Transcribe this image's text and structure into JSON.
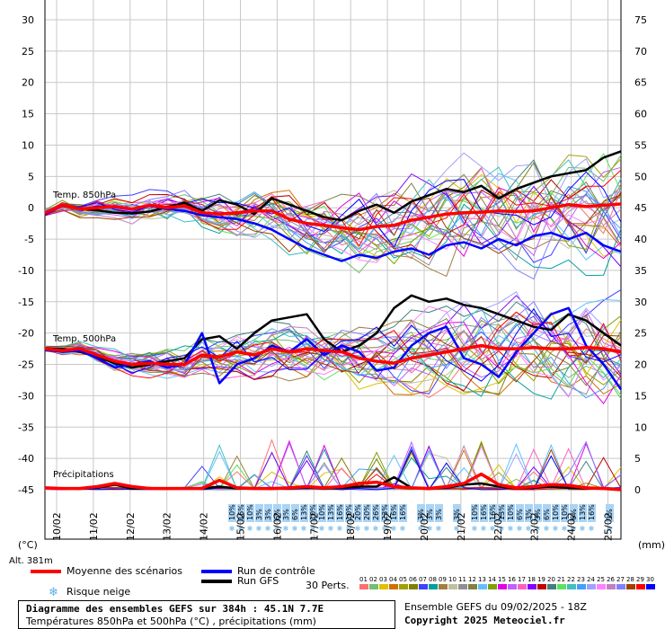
{
  "chart_data": {
    "type": "line",
    "title": "Diagramme des ensembles GEFS sur 384h : 45.1N 7.7E",
    "subtitle": "Températures 850hPa et 500hPa (°C) , précipitations (mm)",
    "x_tick_labels": [
      "10/02",
      "11/02",
      "12/02",
      "13/02",
      "14/02",
      "15/02",
      "16/02",
      "17/02",
      "18/02",
      "19/02",
      "20/02",
      "21/02",
      "22/02",
      "23/02",
      "24/02",
      "25/02"
    ],
    "left_axis": {
      "label": "(°C)",
      "ticks": [
        30,
        25,
        20,
        15,
        10,
        5,
        0,
        -5,
        -10,
        -15,
        -20,
        -25,
        -30,
        -35,
        -40,
        -45
      ],
      "ylim": [
        -45,
        30
      ]
    },
    "right_axis": {
      "label": "(mm)",
      "ticks": [
        75,
        70,
        65,
        60,
        55,
        50,
        45,
        40,
        35,
        30,
        25,
        20,
        15,
        10,
        5,
        0
      ],
      "ylim": [
        0,
        75
      ]
    },
    "panel_labels": {
      "t850": "Temp. 850hPa",
      "t500": "Temp. 500hPa",
      "precip": "Précipitations"
    },
    "altitude_label": "Alt. 381m",
    "series": [
      {
        "name": "Moyenne des scénarios",
        "group": "t850",
        "color": "#ff0000",
        "values": [
          -0.8,
          0.4,
          -0.2,
          0.0,
          0.2,
          -0.2,
          0.4,
          0.0,
          0.3,
          -0.8,
          -1.0,
          -0.8,
          -0.5,
          -0.5,
          -1.8,
          -2.5,
          -2.8,
          -3.2,
          -3.5,
          -3.0,
          -2.8,
          -2.0,
          -1.5,
          -1.0,
          -0.8,
          -0.7,
          -0.5,
          -0.6,
          -0.5,
          0.0,
          0.5,
          0.2,
          0.4,
          0.6
        ]
      },
      {
        "name": "Run de contrôle",
        "group": "t850",
        "color": "#0000ff",
        "values": [
          -0.8,
          0.4,
          -0.3,
          0.2,
          0.1,
          -0.3,
          0.3,
          -0.2,
          -0.5,
          -1.2,
          -1.5,
          -1.8,
          -2.5,
          -3.5,
          -5.0,
          -6.5,
          -7.5,
          -8.5,
          -7.5,
          -8.0,
          -7.0,
          -6.5,
          -7.5,
          -6.0,
          -5.5,
          -6.5,
          -5.0,
          -6.0,
          -4.5,
          -4.0,
          -5.0,
          -4.0,
          -6.0,
          -7.0
        ]
      },
      {
        "name": "Run GFS",
        "group": "t850",
        "color": "#000000",
        "values": [
          -0.8,
          0.3,
          -0.2,
          -0.4,
          -0.8,
          -0.9,
          -0.6,
          0.1,
          0.8,
          -0.5,
          1.2,
          0.5,
          -1.0,
          1.5,
          0.5,
          -0.5,
          -1.5,
          -2.0,
          -0.5,
          0.5,
          -0.8,
          1.0,
          2.0,
          3.0,
          2.5,
          3.5,
          1.5,
          3.0,
          4.0,
          5.0,
          5.5,
          6.0,
          8.0,
          9.0
        ]
      },
      {
        "name": "Moyenne des scénarios",
        "group": "t500",
        "color": "#ff0000",
        "values": [
          -22.5,
          -22.8,
          -22.5,
          -23.5,
          -24.5,
          -25.0,
          -24.8,
          -25.0,
          -25.0,
          -23.5,
          -23.8,
          -23.0,
          -23.5,
          -22.5,
          -23.0,
          -22.5,
          -22.8,
          -23.0,
          -24.0,
          -24.5,
          -24.8,
          -24.0,
          -23.5,
          -23.0,
          -22.5,
          -22.0,
          -22.5,
          -22.5,
          -22.3,
          -22.5,
          -22.5,
          -22.3,
          -22.5,
          -23.0
        ]
      },
      {
        "name": "Run de contrôle",
        "group": "t500",
        "color": "#0000ff",
        "values": [
          -22.5,
          -23.0,
          -22.8,
          -24.0,
          -25.5,
          -25.0,
          -24.5,
          -25.5,
          -25.0,
          -20.0,
          -28.0,
          -25.0,
          -24.0,
          -22.0,
          -23.0,
          -21.0,
          -23.5,
          -22.0,
          -23.0,
          -26.0,
          -25.5,
          -22.0,
          -20.0,
          -19.0,
          -24.0,
          -25.0,
          -27.0,
          -23.0,
          -20.0,
          -17.0,
          -16.0,
          -22.0,
          -25.0,
          -29.0
        ]
      },
      {
        "name": "Run GFS",
        "group": "t500",
        "color": "#000000",
        "values": [
          -22.5,
          -22.5,
          -23.0,
          -23.8,
          -24.8,
          -25.5,
          -25.0,
          -24.5,
          -24.0,
          -21.0,
          -20.5,
          -22.5,
          -20.0,
          -18.0,
          -17.5,
          -17.0,
          -21.0,
          -23.0,
          -22.0,
          -20.0,
          -16.0,
          -14.0,
          -15.0,
          -14.5,
          -15.5,
          -16.0,
          -17.0,
          -18.0,
          -19.0,
          -19.5,
          -17.0,
          -18.0,
          -20.0,
          -22.0
        ]
      },
      {
        "name": "Moyenne des scénarios",
        "group": "precip",
        "axis": "right",
        "color": "#ff0000",
        "values": [
          0.3,
          0.2,
          0.2,
          0.5,
          1.0,
          0.5,
          0.2,
          0.2,
          0.2,
          0.2,
          1.5,
          0.3,
          0.2,
          0.2,
          0.3,
          0.5,
          0.3,
          0.5,
          1.0,
          1.2,
          0.5,
          0.3,
          0.2,
          0.5,
          1.0,
          2.5,
          0.8,
          0.3,
          0.5,
          0.8,
          0.7,
          0.3,
          0.2,
          0.0
        ]
      },
      {
        "name": "Run GFS",
        "group": "precip",
        "axis": "right",
        "color": "#000000",
        "values": [
          0.3,
          0.2,
          0.2,
          0.3,
          0.8,
          0.2,
          0.2,
          0.2,
          0.2,
          0.2,
          0.5,
          0.2,
          0.2,
          0.2,
          0.2,
          0.3,
          0.2,
          0.3,
          0.5,
          0.5,
          2.0,
          0.3,
          0.2,
          0.3,
          0.8,
          1.0,
          0.5,
          0.2,
          0.3,
          0.5,
          0.3,
          0.2,
          0.2,
          0.0
        ]
      }
    ],
    "snow_risk_percent": [
      "10%",
      "16%",
      "10%",
      "3%",
      "3%",
      "6%",
      "3%",
      "6%",
      "13%",
      "10%",
      "10%",
      "13%",
      "16%",
      "10%",
      "20%",
      "20%",
      "26%",
      "23%",
      "16%",
      "16%",
      "",
      "3%",
      "3%",
      "3%",
      "",
      "3%",
      "",
      "10%",
      "16%",
      "16%",
      "13%",
      "10%",
      "6%",
      "3%",
      "3%",
      "6%",
      "10%",
      "10%",
      "6%",
      "13%",
      "16%",
      "",
      "3%"
    ],
    "grid": true,
    "legend": [
      {
        "label": "Moyenne des scénarios",
        "color": "#ff0000"
      },
      {
        "label": "Run de contrôle",
        "color": "#0000ff"
      },
      {
        "label": "Run GFS",
        "color": "#000000"
      },
      {
        "label": "Risque neige",
        "icon": "snowflake-icon"
      }
    ],
    "perturbations": {
      "label": "30 Perts.",
      "codes": [
        "01",
        "02",
        "03",
        "04",
        "05",
        "06",
        "07",
        "08",
        "09",
        "10",
        "11",
        "12",
        "13",
        "14",
        "15",
        "16",
        "17",
        "18",
        "19",
        "20",
        "21",
        "22",
        "23",
        "24",
        "25",
        "26",
        "27",
        "28",
        "29",
        "30"
      ],
      "colors": [
        "#ff7070",
        "#70c070",
        "#e0c000",
        "#d07000",
        "#a0a000",
        "#808000",
        "#4040ff",
        "#00a0a0",
        "#a08040",
        "#c0c0a0",
        "#909090",
        "#808040",
        "#60c0ff",
        "#80a000",
        "#e000e0",
        "#c060ff",
        "#ff60c0",
        "#8000ff",
        "#c00000",
        "#408080",
        "#60e060",
        "#40c0c0",
        "#40a0ff",
        "#a0a0ff",
        "#ff80ff",
        "#c080c0",
        "#8080ff",
        "#a04000",
        "#ff0000",
        "#0000ff"
      ]
    }
  },
  "footer": {
    "run_info": "Ensemble GEFS du 09/02/2025 - 18Z",
    "copyright": "Copyright 2025 Meteociel.fr"
  }
}
